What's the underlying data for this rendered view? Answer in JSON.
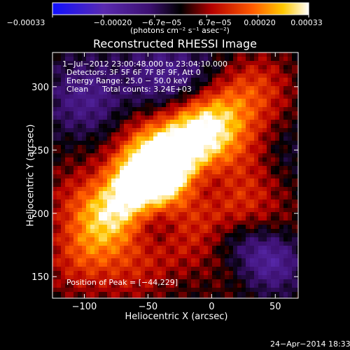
{
  "chart_data": {
    "type": "heatmap",
    "title": "Reconstructed RHESSI Image",
    "xlabel": "Heliocentric X (arcsec)",
    "ylabel": "Heliocentric Y (arcsec)",
    "xlim": [
      -125,
      68
    ],
    "ylim": [
      133,
      327
    ],
    "x_ticks": [
      -100,
      -50,
      0,
      50
    ],
    "y_ticks": [
      150,
      200,
      250,
      300
    ],
    "x_tick_labels": [
      "−100",
      "−50",
      "0",
      "50"
    ],
    "y_tick_labels": [
      "150",
      "200",
      "250",
      "300"
    ],
    "colorbar": {
      "min": -0.00033,
      "max": 0.00033,
      "ticks": [
        -0.00033,
        -0.0002,
        -6.7e-05,
        6.7e-05,
        0.0002,
        0.00033
      ],
      "tick_labels": [
        "−0.00033",
        "−0.00020",
        "−6.7e−05",
        "6.7e−05",
        "0.00020",
        "0.00033"
      ],
      "units": "(photons cm⁻² s⁻¹ asec⁻²)",
      "colormap": [
        "#1010ff",
        "#5a2ab0",
        "#3c1070",
        "#000000",
        "#b40000",
        "#ff5a00",
        "#ffc800",
        "#ffffff"
      ]
    },
    "annotations": {
      "time_range": "1−Jul−2012 23:00:48.000 to 23:04:10.000",
      "detectors": "Detectors: 3F 5F 6F 7F 8F 9F, Att 0",
      "energy": "Energy Range: 25.0 − 50.0 keV",
      "clean": "Clean",
      "counts": "Total counts: 3.24E+03",
      "peak": "Position of Peak = [−44,229]"
    },
    "peak_position": [
      -44,
      229
    ]
  },
  "footer": {
    "timestamp": "24−Apr−2014 18:33"
  }
}
